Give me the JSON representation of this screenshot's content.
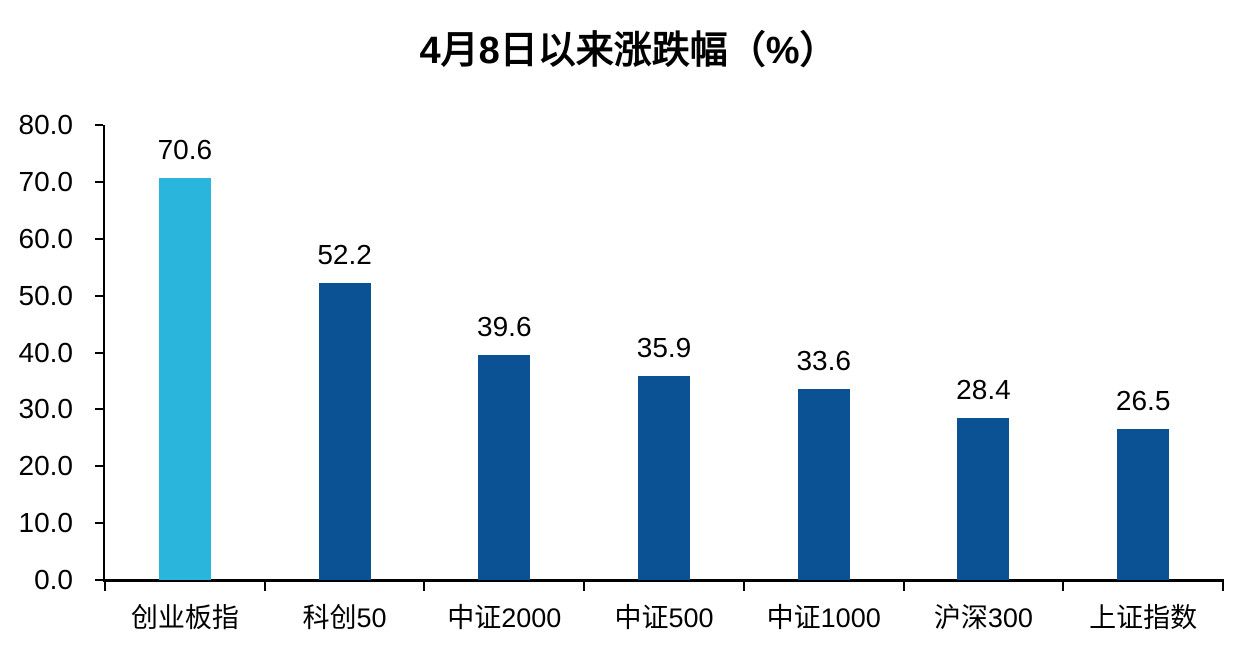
{
  "chart_data": {
    "type": "bar",
    "title": "4月8日以来涨跌幅（%）",
    "categories": [
      "创业板指",
      "科创50",
      "中证2000",
      "中证500",
      "中证1000",
      "沪深300",
      "上证指数"
    ],
    "values": [
      70.6,
      52.2,
      39.6,
      35.9,
      33.6,
      28.4,
      26.5
    ],
    "data_labels": [
      "70.6",
      "52.2",
      "39.6",
      "35.9",
      "33.6",
      "28.4",
      "26.5"
    ],
    "highlight_index": 0,
    "colors": {
      "highlight_bar": "#29B5DC",
      "default_bar": "#0B5294",
      "axis": "#000000",
      "text": "#000000",
      "background": "#FFFFFF"
    },
    "ylim": [
      0,
      80
    ],
    "ytick_step": 10,
    "ytick_labels": [
      "0.0",
      "10.0",
      "20.0",
      "30.0",
      "40.0",
      "50.0",
      "60.0",
      "70.0",
      "80.0"
    ],
    "xlabel": "",
    "ylabel": "",
    "grid": false,
    "legend": "none"
  }
}
